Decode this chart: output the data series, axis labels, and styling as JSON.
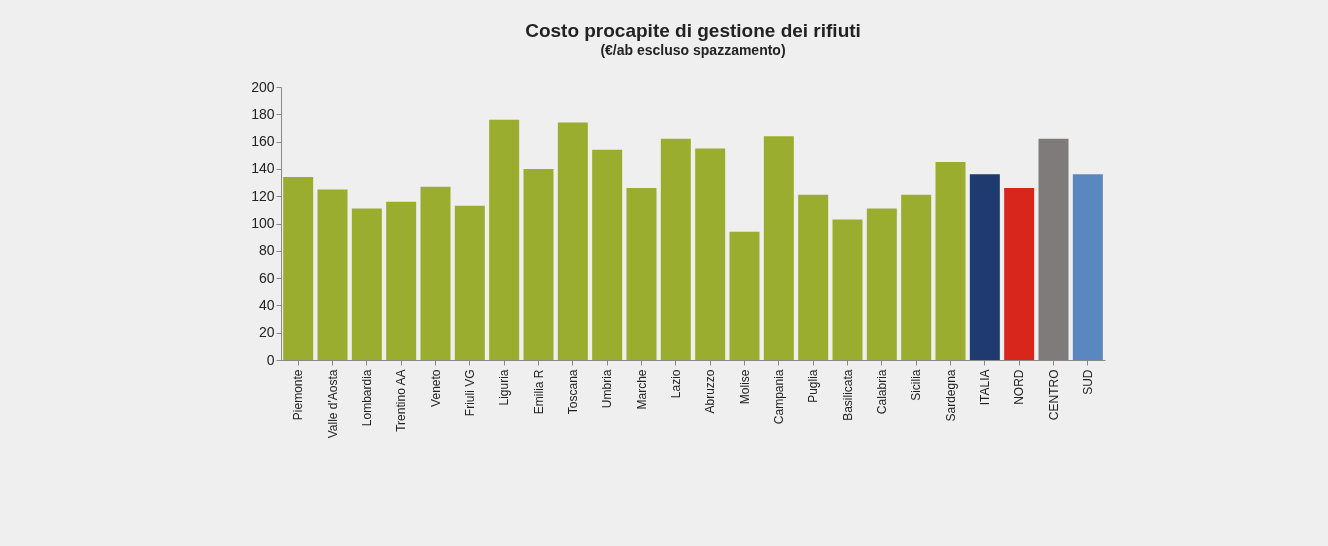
{
  "chart_data": {
    "type": "bar",
    "title": "Costo procapite di gestione dei rifiuti",
    "subtitle": "(€/ab escluso spazzamento)",
    "categories": [
      "Piemonte",
      "Valle d'Aosta",
      "Lombardia",
      "Trentino AA",
      "Veneto",
      "Friuli VG",
      "Liguria",
      "Emilia R",
      "Toscana",
      "Umbria",
      "Marche",
      "Lazio",
      "Abruzzo",
      "Molise",
      "Campania",
      "Puglia",
      "Basilicata",
      "Calabria",
      "Sicilia",
      "Sardegna",
      "ITALIA",
      "NORD",
      "CENTRO",
      "SUD"
    ],
    "values": [
      134,
      125,
      111,
      116,
      127,
      113,
      176,
      140,
      174,
      154,
      126,
      162,
      155,
      94,
      164,
      121,
      103,
      111,
      121,
      145,
      136,
      126,
      162,
      136
    ],
    "colors": [
      "#9aad2e",
      "#9aad2e",
      "#9aad2e",
      "#9aad2e",
      "#9aad2e",
      "#9aad2e",
      "#9aad2e",
      "#9aad2e",
      "#9aad2e",
      "#9aad2e",
      "#9aad2e",
      "#9aad2e",
      "#9aad2e",
      "#9aad2e",
      "#9aad2e",
      "#9aad2e",
      "#9aad2e",
      "#9aad2e",
      "#9aad2e",
      "#9aad2e",
      "#1f3a6e",
      "#d9261c",
      "#7f7b7b",
      "#5a87c0"
    ],
    "ylim": [
      0,
      200
    ],
    "yticks": [
      0,
      20,
      40,
      60,
      80,
      100,
      120,
      140,
      160,
      180,
      200
    ],
    "grid": false,
    "legend": false
  }
}
